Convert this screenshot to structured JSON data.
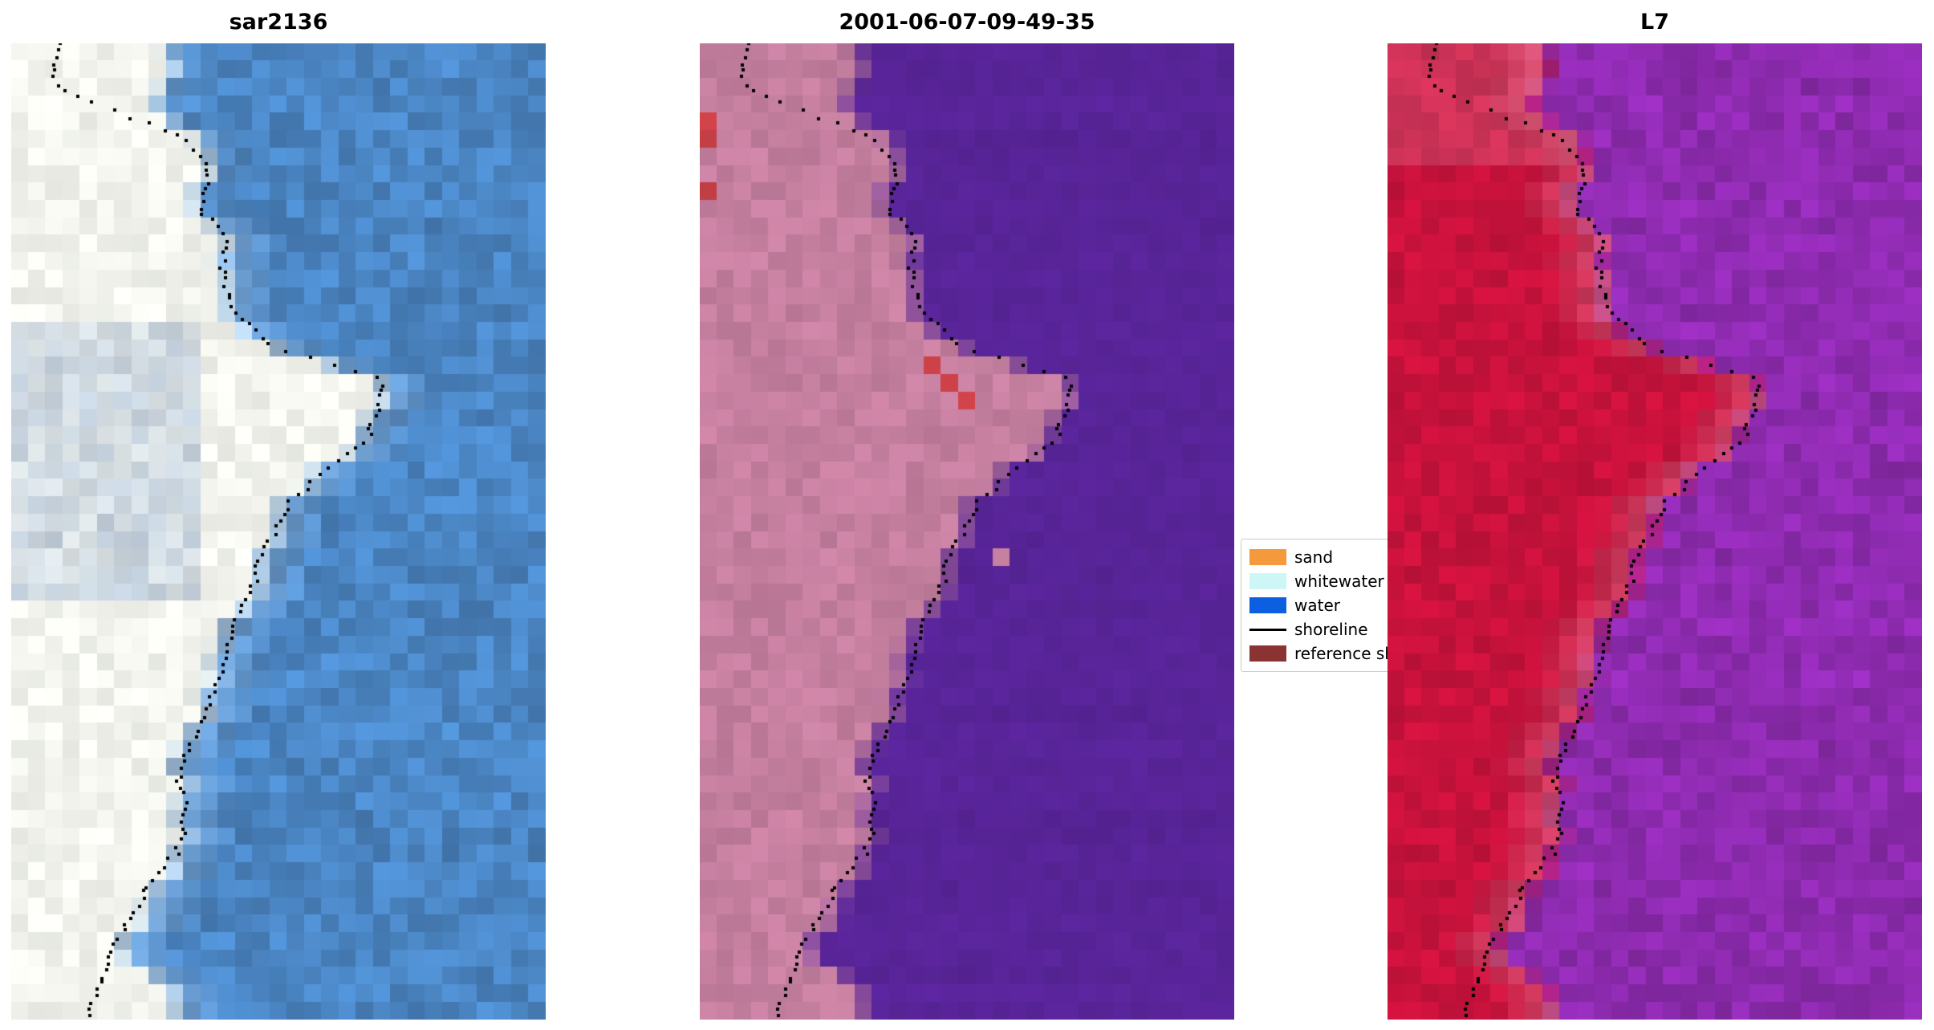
{
  "chart_data": {
    "type": "heatmap",
    "figure_kind": "satellite-shoreline-comparison",
    "panels": [
      {
        "title": "sar2136",
        "style": "sar",
        "water_rgb": [
          75,
          134,
          196
        ],
        "land_rgb": [
          240,
          242,
          234
        ],
        "noise": {
          "water": 0.13,
          "land": 0.06
        },
        "seed": 11
      },
      {
        "title": "2001-06-07-09-49-35",
        "style": "classified",
        "water_rgb": [
          88,
          36,
          152
        ],
        "land_rgb": [
          197,
          127,
          159
        ],
        "red_rgb": [
          205,
          66,
          72
        ],
        "red_cells": [
          [
            0.08,
            0.005
          ],
          [
            0.1,
            0.005
          ],
          [
            0.155,
            0.005
          ],
          [
            0.33,
            0.43
          ],
          [
            0.345,
            0.47
          ],
          [
            0.36,
            0.51
          ]
        ],
        "island": [
          0.535,
          0.57
        ],
        "noise": {
          "water": 0.04,
          "land": 0.07
        },
        "seed": 22
      },
      {
        "title": "L7",
        "style": "l7",
        "water_rgb": [
          142,
          43,
          176
        ],
        "land_rgb": [
          200,
          18,
          60
        ],
        "edge_rgb": [
          214,
          124,
          148
        ],
        "noise": {
          "water": 0.11,
          "land": 0.09
        },
        "seed": 33
      }
    ],
    "grid": {
      "cols": 31,
      "rows": 56
    },
    "boundary": [
      [
        0,
        0.31
      ],
      [
        0.04,
        0.29
      ],
      [
        0.07,
        0.26
      ],
      [
        0.09,
        0.34
      ],
      [
        0.12,
        0.37
      ],
      [
        0.16,
        0.35
      ],
      [
        0.2,
        0.4
      ],
      [
        0.24,
        0.39
      ],
      [
        0.28,
        0.42
      ],
      [
        0.31,
        0.48
      ],
      [
        0.325,
        0.58
      ],
      [
        0.345,
        0.7
      ],
      [
        0.38,
        0.68
      ],
      [
        0.41,
        0.66
      ],
      [
        0.44,
        0.58
      ],
      [
        0.47,
        0.52
      ],
      [
        0.52,
        0.47
      ],
      [
        0.57,
        0.44
      ],
      [
        0.6,
        0.41
      ],
      [
        0.64,
        0.39
      ],
      [
        0.68,
        0.37
      ],
      [
        0.71,
        0.34
      ],
      [
        0.75,
        0.31
      ],
      [
        0.79,
        0.325
      ],
      [
        0.83,
        0.31
      ],
      [
        0.86,
        0.285
      ],
      [
        0.89,
        0.25
      ],
      [
        0.93,
        0.21
      ],
      [
        0.96,
        0.27
      ],
      [
        1.0,
        0.32
      ]
    ],
    "shoreline": [
      [
        0,
        0.09
      ],
      [
        0.03,
        0.075
      ],
      [
        0.05,
        0.1
      ],
      [
        0.07,
        0.2
      ],
      [
        0.085,
        0.28
      ],
      [
        0.105,
        0.335
      ],
      [
        0.13,
        0.37
      ],
      [
        0.17,
        0.35
      ],
      [
        0.2,
        0.4
      ],
      [
        0.24,
        0.39
      ],
      [
        0.28,
        0.42
      ],
      [
        0.31,
        0.48
      ],
      [
        0.325,
        0.58
      ],
      [
        0.345,
        0.7
      ],
      [
        0.38,
        0.68
      ],
      [
        0.41,
        0.66
      ],
      [
        0.44,
        0.58
      ],
      [
        0.47,
        0.52
      ],
      [
        0.52,
        0.47
      ],
      [
        0.57,
        0.44
      ],
      [
        0.6,
        0.41
      ],
      [
        0.64,
        0.39
      ],
      [
        0.68,
        0.37
      ],
      [
        0.71,
        0.34
      ],
      [
        0.75,
        0.31
      ],
      [
        0.79,
        0.325
      ],
      [
        0.83,
        0.31
      ],
      [
        0.86,
        0.26
      ],
      [
        0.89,
        0.23
      ],
      [
        0.93,
        0.19
      ],
      [
        0.97,
        0.16
      ],
      [
        1.0,
        0.14
      ]
    ],
    "shoreline_dots": {
      "count": 150,
      "size": 4,
      "color": "#000000"
    },
    "legend": {
      "entries": [
        {
          "label": "sand",
          "color": "#f5993d",
          "kind": "patch"
        },
        {
          "label": "whitewater",
          "color": "#cdf6f6",
          "kind": "patch"
        },
        {
          "label": "water",
          "color": "#0b5fe0",
          "kind": "patch"
        },
        {
          "label": "shoreline",
          "color": "#000000",
          "kind": "line"
        },
        {
          "label": "reference shoreline",
          "color": "#8b3333",
          "kind": "patch"
        }
      ]
    }
  }
}
